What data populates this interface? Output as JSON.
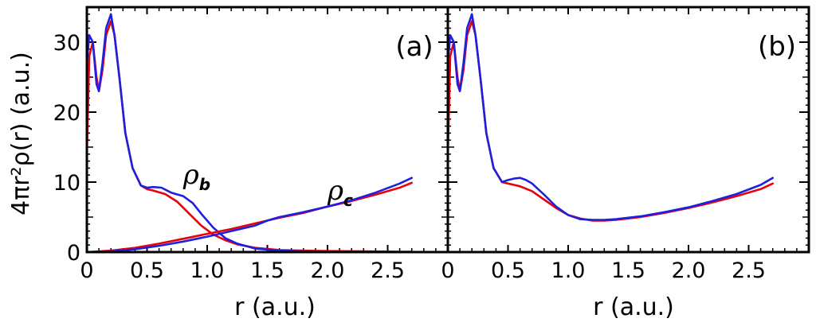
{
  "chart_data": {
    "type": "line",
    "ylabel": "4πr²ρ(r) (a.u.)",
    "xlabel": "r (a.u.)",
    "xlim": [
      0,
      3.0
    ],
    "ylim": [
      0,
      35
    ],
    "x_ticks": [
      "0",
      "0.5",
      "1.0",
      "1.5",
      "2.0",
      "2.5"
    ],
    "y_ticks": [
      "0",
      "10",
      "20",
      "30"
    ],
    "colors": {
      "red": "#e8000b",
      "blue": "#1f1fe0"
    },
    "panels": [
      {
        "label": "(a)",
        "annotations": [
          {
            "main": "ρ",
            "sub": "b",
            "x": 0.8,
            "y": 9.8
          },
          {
            "main": "ρ",
            "sub": "c",
            "x": 2.0,
            "y": 7.5
          }
        ],
        "series": [
          {
            "color": "red",
            "x": [
              0,
              0.02,
              0.05,
              0.08,
              0.1,
              0.13,
              0.16,
              0.2,
              0.23,
              0.27,
              0.32,
              0.38,
              0.45,
              0.5,
              0.55,
              0.65,
              0.75,
              0.85,
              0.95,
              1.05,
              1.15,
              1.25,
              1.4,
              1.6,
              1.8,
              2.0,
              2.3,
              2.6,
              2.7
            ],
            "y": [
              14,
              28,
              30,
              25,
              23,
              26,
              31,
              33,
              31,
              25,
              17,
              12,
              9.5,
              9,
              8.8,
              8.3,
              7.2,
              5.5,
              3.8,
              2.5,
              1.7,
              1.1,
              0.6,
              0.3,
              0.2,
              0.15,
              0.1,
              0.05,
              0.05
            ]
          },
          {
            "color": "blue",
            "x": [
              0,
              0.02,
              0.05,
              0.08,
              0.1,
              0.13,
              0.16,
              0.2,
              0.23,
              0.27,
              0.32,
              0.38,
              0.45,
              0.5,
              0.55,
              0.62,
              0.7,
              0.8,
              0.88,
              0.95,
              1.05,
              1.15,
              1.25,
              1.4,
              1.6,
              1.8,
              2.0,
              2.3,
              2.6,
              2.7
            ],
            "y": [
              27,
              31,
              30,
              24,
              23,
              27,
              32,
              34,
              31,
              25,
              17,
              12,
              9.5,
              9.2,
              9.3,
              9.2,
              8.5,
              8,
              7,
              5.5,
              3.5,
              2,
              1.2,
              0.5,
              0.2,
              0.1,
              0.05,
              0.02,
              0.01,
              0
            ]
          },
          {
            "color": "red",
            "x": [
              0,
              0.2,
              0.4,
              0.6,
              0.8,
              1.0,
              1.2,
              1.4,
              1.6,
              1.8,
              2.0,
              2.2,
              2.4,
              2.6,
              2.7
            ],
            "y": [
              0,
              0.2,
              0.6,
              1.2,
              1.9,
              2.6,
              3.3,
              4.1,
              4.9,
              5.6,
              6.5,
              7.3,
              8.2,
              9.2,
              9.9
            ]
          },
          {
            "color": "blue",
            "x": [
              0,
              0.2,
              0.4,
              0.6,
              0.8,
              1.0,
              1.2,
              1.4,
              1.5,
              1.6,
              1.8,
              2.0,
              2.2,
              2.4,
              2.6,
              2.7
            ],
            "y": [
              0,
              0.1,
              0.4,
              0.9,
              1.5,
              2.2,
              3.0,
              3.8,
              4.5,
              5.0,
              5.7,
              6.5,
              7.4,
              8.5,
              9.8,
              10.6
            ]
          }
        ]
      },
      {
        "label": "(b)",
        "annotations": [],
        "series": [
          {
            "color": "red",
            "x": [
              0,
              0.02,
              0.05,
              0.08,
              0.1,
              0.13,
              0.16,
              0.2,
              0.23,
              0.27,
              0.32,
              0.38,
              0.45,
              0.5,
              0.55,
              0.6,
              0.7,
              0.8,
              0.9,
              1.0,
              1.1,
              1.2,
              1.3,
              1.4,
              1.6,
              1.8,
              2.0,
              2.2,
              2.4,
              2.6,
              2.7
            ],
            "y": [
              14,
              28,
              30,
              25,
              23,
              26,
              31,
              33,
              31,
              25,
              17,
              12,
              10,
              9.8,
              9.6,
              9.4,
              8.7,
              7.5,
              6.3,
              5.3,
              4.8,
              4.5,
              4.5,
              4.6,
              5.0,
              5.6,
              6.3,
              7.1,
              8,
              9,
              9.8
            ]
          },
          {
            "color": "blue",
            "x": [
              0,
              0.02,
              0.05,
              0.08,
              0.1,
              0.13,
              0.16,
              0.2,
              0.23,
              0.27,
              0.32,
              0.38,
              0.45,
              0.5,
              0.55,
              0.6,
              0.65,
              0.7,
              0.8,
              0.9,
              1.0,
              1.1,
              1.2,
              1.3,
              1.4,
              1.6,
              1.8,
              2.0,
              2.2,
              2.4,
              2.6,
              2.7
            ],
            "y": [
              27,
              31,
              30,
              24,
              23,
              27,
              32,
              34,
              31,
              25,
              17,
              12,
              10,
              10.3,
              10.5,
              10.6,
              10.3,
              9.8,
              8.2,
              6.5,
              5.3,
              4.7,
              4.6,
              4.6,
              4.7,
              5.1,
              5.7,
              6.4,
              7.3,
              8.3,
              9.6,
              10.6
            ]
          }
        ]
      }
    ]
  }
}
